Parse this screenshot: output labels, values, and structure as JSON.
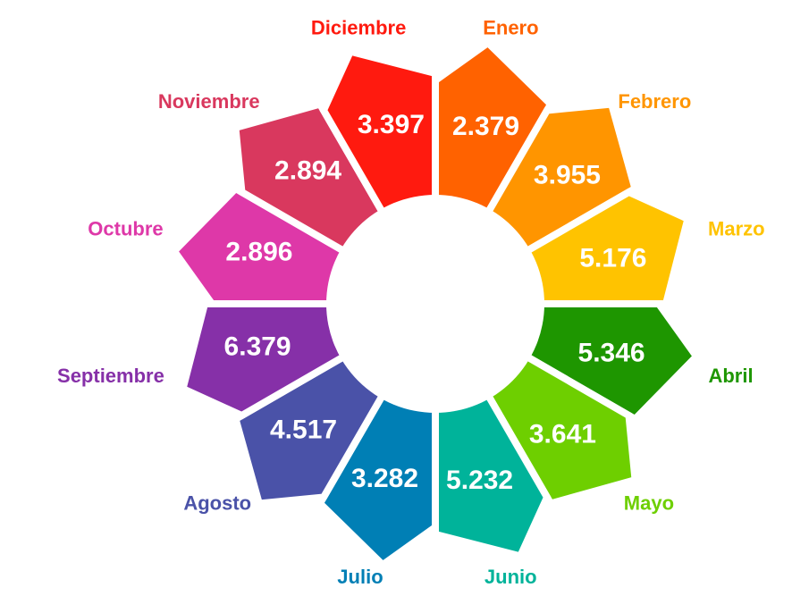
{
  "chart_data": {
    "type": "donut",
    "categories": [
      "Enero",
      "Febrero",
      "Marzo",
      "Abril",
      "Mayo",
      "Junio",
      "Julio",
      "Agosto",
      "Septiembre",
      "Octubre",
      "Noviembre",
      "Diciembre"
    ],
    "values": [
      2.379,
      3.955,
      5.176,
      5.346,
      3.641,
      5.232,
      3.282,
      4.517,
      6.379,
      2.896,
      2.894,
      3.397
    ],
    "colors": [
      "#ff6200",
      "#ff9500",
      "#ffc300",
      "#1e9600",
      "#6ecf00",
      "#00b39a",
      "#007fb5",
      "#4a52a8",
      "#8630a8",
      "#de38a8",
      "#d9385e",
      "#ff1a0f"
    ]
  }
}
